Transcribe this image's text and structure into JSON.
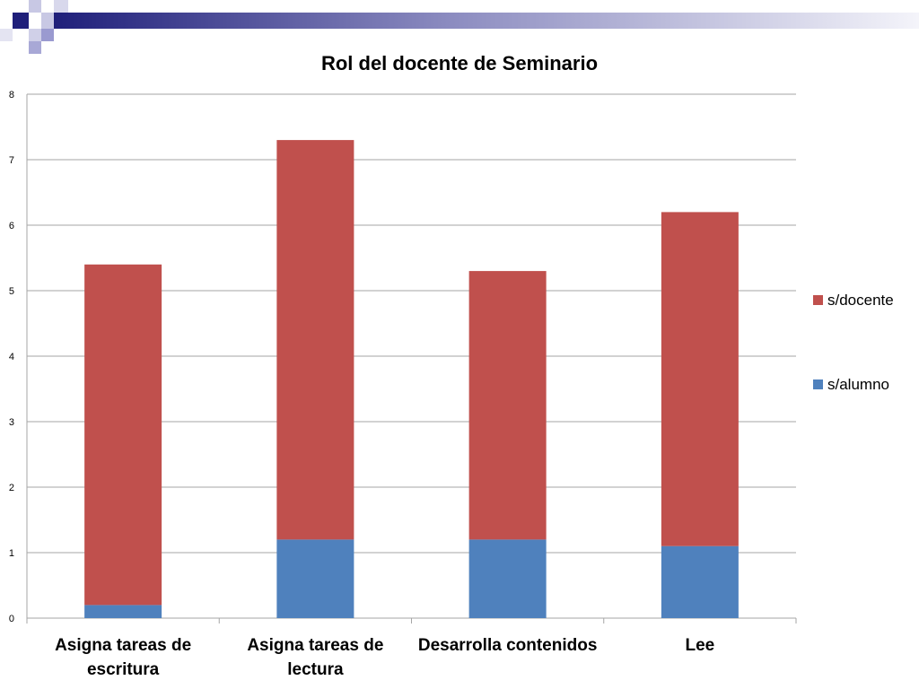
{
  "colors": {
    "s_docente": "#C0504D",
    "s_alumno": "#4F81BD",
    "gridline": "#A6A6A6",
    "band_dark": "#1F1F7A",
    "band_light": "#B8B8D8"
  },
  "chart_data": {
    "type": "bar",
    "stacked": true,
    "title": "Rol del docente de Seminario",
    "categories": [
      [
        "Asigna tareas de",
        "escritura"
      ],
      [
        "Asigna tareas de",
        "lectura"
      ],
      [
        "Desarrolla contenidos"
      ],
      [
        "Lee"
      ]
    ],
    "series": [
      {
        "name": "s/alumno",
        "values": [
          0.2,
          1.2,
          1.2,
          1.1
        ]
      },
      {
        "name": "s/docente",
        "values": [
          5.2,
          6.1,
          4.1,
          5.1
        ]
      }
    ],
    "ylim": [
      0,
      8
    ],
    "yticks": [
      "0",
      "1",
      "2",
      "3",
      "4",
      "5",
      "6",
      "7",
      "8"
    ],
    "grid": true,
    "legend_position": "right"
  }
}
